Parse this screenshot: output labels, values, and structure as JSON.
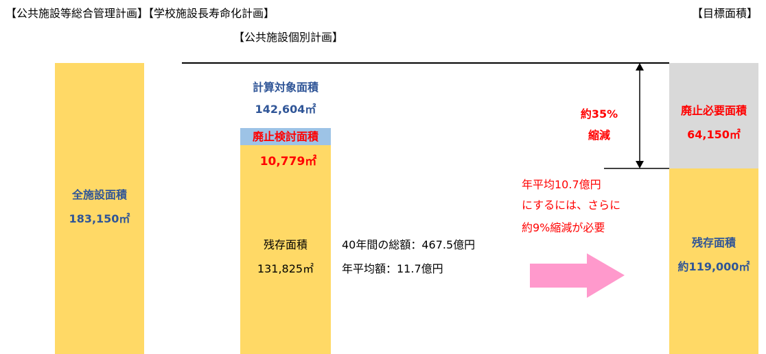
{
  "header": {
    "left": "【公共施設等総合管理計画】【学校施設長寿命化計画】",
    "sub": "【公共施設個別計画】",
    "right": "【目標面積】"
  },
  "all_facilities": {
    "label": "全施設面積",
    "area": "183,150㎡"
  },
  "plan": {
    "target_label": "計算対象面積",
    "target_area": "142,604㎡",
    "abolish_label": "廃止検討面積",
    "abolish_area": "10,779㎡",
    "remaining_label": "残存面積",
    "remaining_area": "131,825㎡"
  },
  "costs": {
    "total": "40年間の総額：467.5億円",
    "annual": "年平均額：11.7億円"
  },
  "reduction": {
    "rate": "約35%",
    "label": "縮減"
  },
  "note": [
    "年平均10.7億円",
    "にするには、さらに",
    "約9%縮減が必要"
  ],
  "target": {
    "abolish_label": "廃止必要面積",
    "abolish_area": "64,150㎡",
    "remaining_label": "残存面積",
    "remaining_area": "約119,000㎡"
  }
}
